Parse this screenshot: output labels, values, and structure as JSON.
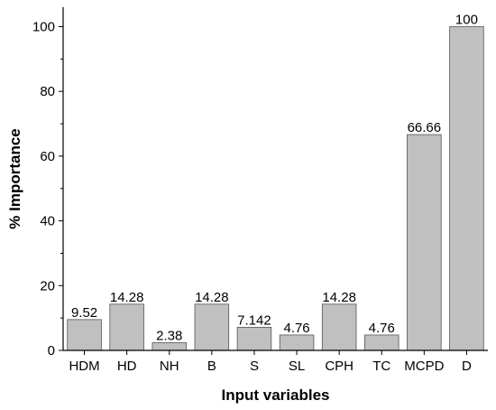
{
  "chart_data": {
    "type": "bar",
    "title": "",
    "xlabel": "Input variables",
    "ylabel": "% Importance",
    "categories": [
      "HDM",
      "HD",
      "NH",
      "B",
      "S",
      "SL",
      "CPH",
      "TC",
      "MCPD",
      "D"
    ],
    "values": [
      9.52,
      14.28,
      2.38,
      14.28,
      7.142,
      4.76,
      14.28,
      4.76,
      66.66,
      100
    ],
    "value_labels": [
      "9.52",
      "14.28",
      "2.38",
      "14.28",
      "7.142",
      "4.76",
      "14.28",
      "4.76",
      "66.66",
      "100"
    ],
    "ylim": [
      0,
      106
    ],
    "yticks": [
      0,
      20,
      40,
      60,
      80,
      100
    ],
    "grid": false,
    "legend": "none",
    "bar_color": "#c0c0c0"
  }
}
